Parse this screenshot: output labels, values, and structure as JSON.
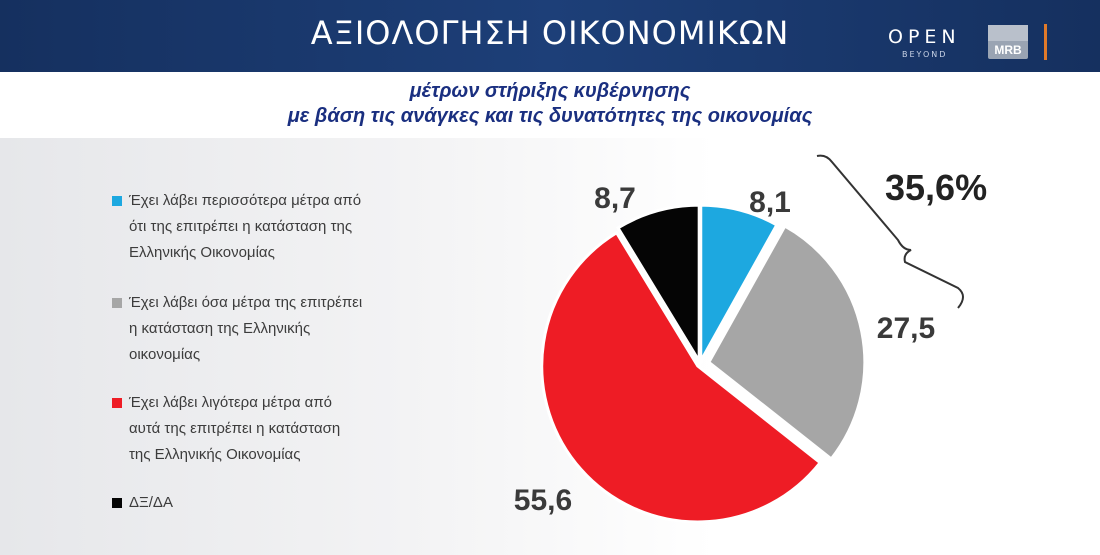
{
  "header": {
    "title": "ΑΞΙΟΛΟΓΗΣΗ ΟΙΚΟΝΟΜΙΚΩΝ",
    "logo_open": "OPEN",
    "logo_beyond": "BEYOND",
    "logo_mrb": "MRB"
  },
  "subtitle": {
    "line1": "μέτρων στήριξης κυβέρνησης",
    "line2": "με βάση τις ανάγκες και τις δυνατότητες της οικονομίας"
  },
  "chart_data": {
    "type": "pie",
    "categories": [
      "Έχει λάβει περισσότερα μέτρα από ότι της επιτρέπει η κατάσταση της Ελληνικής Οικονομίας",
      "Έχει λάβει όσα μέτρα της επιτρέπει η κατάσταση της Ελληνικής οικονομίας",
      "Έχει λάβει λιγότερα μέτρα από αυτά της επιτρέπει η κατάσταση της Ελληνικής Οικονομίας",
      "ΔΞ/ΔΑ"
    ],
    "values": [
      8.1,
      27.5,
      55.6,
      8.7
    ],
    "value_labels": [
      "8,1",
      "27,5",
      "55,6",
      "8,7"
    ],
    "colors": [
      "#1da8e0",
      "#a6a6a6",
      "#ee1c25",
      "#050505"
    ],
    "annotation": "35,6%",
    "legend_position": "left"
  },
  "legend": {
    "items": [
      {
        "lines": [
          "Έχει λάβει περισσότερα μέτρα από",
          "ότι της επιτρέπει η κατάσταση της",
          "Ελληνικής Οικονομίας"
        ]
      },
      {
        "lines": [
          "Έχει λάβει όσα μέτρα της επιτρέπει",
          "η κατάσταση της Ελληνικής",
          "οικονομίας"
        ]
      },
      {
        "lines": [
          "Έχει λάβει λιγότερα μέτρα από",
          "αυτά της επιτρέπει η κατάσταση",
          "της Ελληνικής Οικονομίας"
        ]
      },
      {
        "lines": [
          "ΔΞ/ΔΑ"
        ]
      }
    ]
  }
}
